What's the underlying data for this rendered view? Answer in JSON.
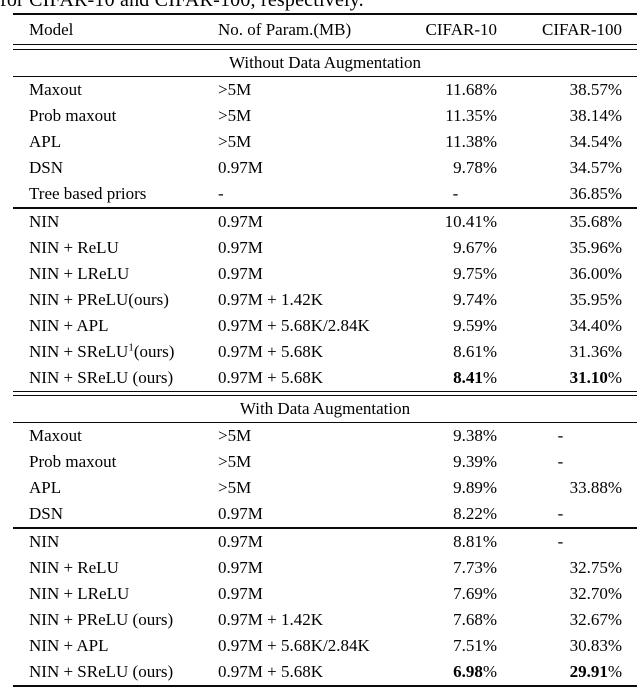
{
  "caption_fragment": "for CIFAR-10 and CIFAR-100, respectively.",
  "table": {
    "columns": [
      "Model",
      "No. of Param.(MB)",
      "CIFAR-10",
      "CIFAR-100"
    ],
    "sections": [
      {
        "title": "Without Data Augmentation",
        "groups": [
          {
            "rows": [
              {
                "model": "Maxout",
                "params": ">5M",
                "c10": "11.68%",
                "c100": "38.57%",
                "bold": false
              },
              {
                "model": "Prob maxout",
                "params": ">5M",
                "c10": "11.35%",
                "c100": "38.14%",
                "bold": false
              },
              {
                "model": "APL",
                "params": ">5M",
                "c10": "11.38%",
                "c100": "34.54%",
                "bold": false
              },
              {
                "model": "DSN",
                "params": "0.97M",
                "c10": "9.78%",
                "c100": "34.57%",
                "bold": false
              },
              {
                "model": "Tree based priors",
                "params": "-",
                "c10": "-",
                "c100": "36.85%",
                "bold": false
              }
            ]
          },
          {
            "rows": [
              {
                "model": "NIN",
                "params": "0.97M",
                "c10": "10.41%",
                "c100": "35.68%",
                "bold": false
              },
              {
                "model": "NIN + ReLU",
                "params": "0.97M",
                "c10": "9.67%",
                "c100": "35.96%",
                "bold": false
              },
              {
                "model": "NIN + LReLU",
                "params": "0.97M",
                "c10": "9.75%",
                "c100": "36.00%",
                "bold": false
              },
              {
                "model": "NIN + PReLU(ours)",
                "params": "0.97M + 1.42K",
                "c10": "9.74%",
                "c100": "35.95%",
                "bold": false
              },
              {
                "model": "NIN + APL",
                "params": "0.97M + 5.68K/2.84K",
                "c10": "9.59%",
                "c100": "34.40%",
                "bold": false
              },
              {
                "model": "NIN + SReLU¹(ours)",
                "params": "0.97M + 5.68K",
                "c10": "8.61%",
                "c100": "31.36%",
                "bold": false
              },
              {
                "model": "NIN + SReLU (ours)",
                "params": "0.97M + 5.68K",
                "c10": "8.41%",
                "c100": "31.10%",
                "bold": true
              }
            ]
          }
        ]
      },
      {
        "title": "With Data Augmentation",
        "groups": [
          {
            "rows": [
              {
                "model": "Maxout",
                "params": ">5M",
                "c10": "9.38%",
                "c100": "-",
                "bold": false
              },
              {
                "model": "Prob maxout",
                "params": ">5M",
                "c10": "9.39%",
                "c100": "-",
                "bold": false
              },
              {
                "model": "APL",
                "params": ">5M",
                "c10": "9.89%",
                "c100": "33.88%",
                "bold": false
              },
              {
                "model": "DSN",
                "params": "0.97M",
                "c10": "8.22%",
                "c100": "-",
                "bold": false
              }
            ]
          },
          {
            "rows": [
              {
                "model": "NIN",
                "params": "0.97M",
                "c10": "8.81%",
                "c100": "-",
                "bold": false
              },
              {
                "model": "NIN + ReLU",
                "params": "0.97M",
                "c10": "7.73%",
                "c100": "32.75%",
                "bold": false
              },
              {
                "model": "NIN + LReLU",
                "params": "0.97M",
                "c10": "7.69%",
                "c100": "32.70%",
                "bold": false
              },
              {
                "model": "NIN + PReLU (ours)",
                "params": "0.97M + 1.42K",
                "c10": "7.68%",
                "c100": "32.67%",
                "bold": false
              },
              {
                "model": "NIN + APL",
                "params": "0.97M + 5.68K/2.84K",
                "c10": "7.51%",
                "c100": "30.83%",
                "bold": false
              },
              {
                "model": "NIN + SReLU (ours)",
                "params": "0.97M + 5.68K",
                "c10": "6.98%",
                "c100": "29.91%",
                "bold": true
              }
            ]
          }
        ]
      }
    ]
  }
}
